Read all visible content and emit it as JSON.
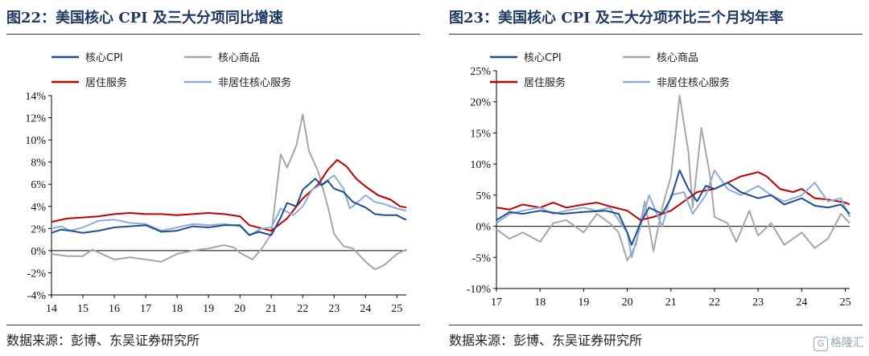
{
  "source_text": "数据来源：彭博、东吴证券研究所",
  "watermark": "格隆汇",
  "chart_data": [
    {
      "type": "line",
      "title": "图22：美国核心 CPI 及三大分项同比增速",
      "ylim": [
        -4,
        14
      ],
      "yticks": [
        "-4%",
        "-2%",
        "0%",
        "2%",
        "4%",
        "6%",
        "8%",
        "10%",
        "12%",
        "14%"
      ],
      "xlim": [
        14,
        25.3
      ],
      "xticks": [
        "14",
        "15",
        "16",
        "17",
        "18",
        "19",
        "20",
        "21",
        "22",
        "23",
        "24",
        "25"
      ],
      "legend": "top-left, 2 columns",
      "series": [
        {
          "name": "核心CPI",
          "color": "#1f4e8c",
          "values": [
            [
              14,
              1.6
            ],
            [
              14.3,
              1.9
            ],
            [
              14.6,
              1.8
            ],
            [
              15,
              1.6
            ],
            [
              15.5,
              1.8
            ],
            [
              16,
              2.1
            ],
            [
              16.5,
              2.2
            ],
            [
              17,
              2.3
            ],
            [
              17.5,
              1.7
            ],
            [
              18,
              1.8
            ],
            [
              18.5,
              2.2
            ],
            [
              19,
              2.1
            ],
            [
              19.5,
              2.3
            ],
            [
              20,
              2.3
            ],
            [
              20.3,
              1.4
            ],
            [
              20.6,
              1.7
            ],
            [
              21,
              1.4
            ],
            [
              21.3,
              3.0
            ],
            [
              21.5,
              4.3
            ],
            [
              21.8,
              4.0
            ],
            [
              22,
              5.5
            ],
            [
              22.2,
              6.0
            ],
            [
              22.4,
              6.5
            ],
            [
              22.6,
              5.9
            ],
            [
              22.8,
              6.3
            ],
            [
              23,
              5.6
            ],
            [
              23.3,
              5.3
            ],
            [
              23.6,
              4.4
            ],
            [
              24,
              3.9
            ],
            [
              24.3,
              3.3
            ],
            [
              24.6,
              3.2
            ],
            [
              25,
              3.2
            ],
            [
              25.2,
              2.9
            ],
            [
              25.3,
              2.8
            ]
          ]
        },
        {
          "name": "核心商品",
          "color": "#a6a6a6",
          "values": [
            [
              14,
              -0.3
            ],
            [
              14.5,
              -0.5
            ],
            [
              15,
              -0.5
            ],
            [
              15.3,
              0.1
            ],
            [
              15.6,
              -0.3
            ],
            [
              16,
              -0.8
            ],
            [
              16.5,
              -0.6
            ],
            [
              17,
              -0.8
            ],
            [
              17.5,
              -1.0
            ],
            [
              18,
              -0.3
            ],
            [
              18.5,
              0.0
            ],
            [
              19,
              0.2
            ],
            [
              19.5,
              0.5
            ],
            [
              19.8,
              0.3
            ],
            [
              20,
              -0.2
            ],
            [
              20.4,
              -0.8
            ],
            [
              20.7,
              0.2
            ],
            [
              21,
              1.5
            ],
            [
              21.3,
              8.7
            ],
            [
              21.5,
              7.5
            ],
            [
              21.8,
              9.5
            ],
            [
              22,
              12.3
            ],
            [
              22.2,
              9.0
            ],
            [
              22.5,
              7.1
            ],
            [
              22.8,
              4.0
            ],
            [
              23,
              1.5
            ],
            [
              23.3,
              0.4
            ],
            [
              23.6,
              0.2
            ],
            [
              24,
              -1.0
            ],
            [
              24.3,
              -1.7
            ],
            [
              24.6,
              -1.3
            ],
            [
              25,
              -0.3
            ],
            [
              25.3,
              0.1
            ]
          ]
        },
        {
          "name": "居住服务",
          "color": "#c00000",
          "values": [
            [
              14,
              2.6
            ],
            [
              14.5,
              2.9
            ],
            [
              15,
              3.0
            ],
            [
              15.5,
              3.1
            ],
            [
              16,
              3.3
            ],
            [
              16.5,
              3.4
            ],
            [
              17,
              3.3
            ],
            [
              17.5,
              3.3
            ],
            [
              18,
              3.2
            ],
            [
              18.5,
              3.3
            ],
            [
              19,
              3.4
            ],
            [
              19.5,
              3.3
            ],
            [
              20,
              3.1
            ],
            [
              20.3,
              2.3
            ],
            [
              20.7,
              2.0
            ],
            [
              21,
              1.8
            ],
            [
              21.5,
              2.9
            ],
            [
              22,
              4.7
            ],
            [
              22.5,
              6.0
            ],
            [
              22.8,
              7.3
            ],
            [
              23.1,
              8.2
            ],
            [
              23.4,
              7.6
            ],
            [
              23.7,
              6.5
            ],
            [
              24,
              5.8
            ],
            [
              24.4,
              5.0
            ],
            [
              24.8,
              4.6
            ],
            [
              25.1,
              4.0
            ],
            [
              25.3,
              3.9
            ]
          ]
        },
        {
          "name": "非居住核心服务",
          "color": "#8faadc",
          "values": [
            [
              14,
              2.0
            ],
            [
              14.3,
              2.2
            ],
            [
              14.6,
              1.8
            ],
            [
              15,
              2.1
            ],
            [
              15.5,
              2.7
            ],
            [
              16,
              2.8
            ],
            [
              16.5,
              2.5
            ],
            [
              17,
              2.4
            ],
            [
              17.5,
              1.8
            ],
            [
              18,
              2.1
            ],
            [
              18.5,
              2.4
            ],
            [
              19,
              2.3
            ],
            [
              19.5,
              2.4
            ],
            [
              20,
              2.2
            ],
            [
              20.3,
              1.4
            ],
            [
              20.7,
              2.0
            ],
            [
              21,
              2.1
            ],
            [
              21.3,
              3.8
            ],
            [
              21.7,
              3.2
            ],
            [
              22,
              4.0
            ],
            [
              22.3,
              5.5
            ],
            [
              22.6,
              6.0
            ],
            [
              23,
              6.8
            ],
            [
              23.3,
              5.6
            ],
            [
              23.5,
              3.8
            ],
            [
              23.8,
              4.5
            ],
            [
              24,
              5.0
            ],
            [
              24.3,
              4.4
            ],
            [
              24.6,
              4.2
            ],
            [
              25,
              3.8
            ],
            [
              25.3,
              3.6
            ]
          ]
        }
      ]
    },
    {
      "type": "line",
      "title": "图23：美国核心 CPI 及三大分项环比三个月均年率",
      "ylim": [
        -10,
        25
      ],
      "yticks": [
        "-10%",
        "-5%",
        "0%",
        "5%",
        "10%",
        "15%",
        "20%",
        "25%"
      ],
      "xlim": [
        17,
        25.1
      ],
      "xticks": [
        "17",
        "18",
        "19",
        "20",
        "21",
        "22",
        "23",
        "24",
        "25"
      ],
      "legend": "top-left, 2 columns",
      "series": [
        {
          "name": "核心CPI",
          "color": "#1f4e8c",
          "values": [
            [
              17,
              1.0
            ],
            [
              17.3,
              2.3
            ],
            [
              17.6,
              2.0
            ],
            [
              18,
              2.5
            ],
            [
              18.5,
              2.0
            ],
            [
              19,
              2.3
            ],
            [
              19.5,
              2.5
            ],
            [
              19.8,
              2.0
            ],
            [
              20,
              -1.0
            ],
            [
              20.1,
              -3.0
            ],
            [
              20.3,
              0.5
            ],
            [
              20.5,
              3.0
            ],
            [
              20.8,
              2.0
            ],
            [
              21,
              4.5
            ],
            [
              21.2,
              9.0
            ],
            [
              21.4,
              6.0
            ],
            [
              21.6,
              4.0
            ],
            [
              21.8,
              6.5
            ],
            [
              22,
              6.0
            ],
            [
              22.3,
              7.0
            ],
            [
              22.6,
              5.5
            ],
            [
              23,
              4.5
            ],
            [
              23.3,
              5.0
            ],
            [
              23.6,
              3.5
            ],
            [
              24,
              4.5
            ],
            [
              24.3,
              3.3
            ],
            [
              24.6,
              3.0
            ],
            [
              24.9,
              3.5
            ],
            [
              25.1,
              2.0
            ]
          ]
        },
        {
          "name": "核心商品",
          "color": "#a6a6a6",
          "values": [
            [
              17,
              -0.5
            ],
            [
              17.3,
              -2.0
            ],
            [
              17.6,
              -1.0
            ],
            [
              18,
              -2.5
            ],
            [
              18.3,
              0.5
            ],
            [
              18.6,
              1.0
            ],
            [
              19,
              -1.0
            ],
            [
              19.3,
              2.0
            ],
            [
              19.6,
              0.5
            ],
            [
              19.8,
              -1.0
            ],
            [
              20,
              -5.5
            ],
            [
              20.2,
              -3.0
            ],
            [
              20.4,
              4.0
            ],
            [
              20.6,
              -4.0
            ],
            [
              20.8,
              3.0
            ],
            [
              21,
              8.0
            ],
            [
              21.2,
              21.0
            ],
            [
              21.4,
              12.0
            ],
            [
              21.5,
              3.0
            ],
            [
              21.7,
              15.8
            ],
            [
              21.9,
              8.0
            ],
            [
              22,
              1.5
            ],
            [
              22.3,
              0.5
            ],
            [
              22.5,
              -2.5
            ],
            [
              22.8,
              2.5
            ],
            [
              23,
              -1.5
            ],
            [
              23.3,
              0.5
            ],
            [
              23.6,
              -3.0
            ],
            [
              24,
              -1.0
            ],
            [
              24.3,
              -3.5
            ],
            [
              24.6,
              -2.0
            ],
            [
              24.9,
              2.0
            ],
            [
              25.1,
              0.5
            ]
          ]
        },
        {
          "name": "居住服务",
          "color": "#c00000",
          "values": [
            [
              17,
              3.0
            ],
            [
              17.3,
              2.7
            ],
            [
              17.6,
              3.5
            ],
            [
              18,
              3.0
            ],
            [
              18.3,
              3.8
            ],
            [
              18.6,
              3.0
            ],
            [
              19,
              3.5
            ],
            [
              19.3,
              3.8
            ],
            [
              19.6,
              3.2
            ],
            [
              20,
              2.5
            ],
            [
              20.3,
              1.0
            ],
            [
              20.6,
              1.5
            ],
            [
              21,
              2.5
            ],
            [
              21.3,
              4.0
            ],
            [
              21.6,
              5.5
            ],
            [
              22,
              6.0
            ],
            [
              22.3,
              7.0
            ],
            [
              22.6,
              8.0
            ],
            [
              23,
              8.7
            ],
            [
              23.2,
              8.0
            ],
            [
              23.5,
              6.0
            ],
            [
              23.8,
              5.5
            ],
            [
              24,
              6.0
            ],
            [
              24.3,
              4.5
            ],
            [
              24.6,
              4.3
            ],
            [
              25,
              3.8
            ],
            [
              25.1,
              3.5
            ]
          ]
        },
        {
          "name": "非居住核心服务",
          "color": "#8faadc",
          "values": [
            [
              17,
              0.5
            ],
            [
              17.3,
              2.0
            ],
            [
              17.6,
              2.5
            ],
            [
              18,
              3.0
            ],
            [
              18.3,
              2.0
            ],
            [
              18.6,
              2.5
            ],
            [
              19,
              3.0
            ],
            [
              19.3,
              2.5
            ],
            [
              19.6,
              3.0
            ],
            [
              20,
              -1.0
            ],
            [
              20.1,
              -5.0
            ],
            [
              20.3,
              0.0
            ],
            [
              20.5,
              5.0
            ],
            [
              20.8,
              0.0
            ],
            [
              21,
              5.0
            ],
            [
              21.3,
              5.5
            ],
            [
              21.5,
              2.0
            ],
            [
              21.8,
              5.0
            ],
            [
              22,
              9.0
            ],
            [
              22.3,
              6.0
            ],
            [
              22.6,
              5.0
            ],
            [
              23,
              6.5
            ],
            [
              23.3,
              5.0
            ],
            [
              23.6,
              4.0
            ],
            [
              24,
              5.0
            ],
            [
              24.3,
              7.0
            ],
            [
              24.6,
              4.0
            ],
            [
              24.9,
              4.5
            ],
            [
              25.1,
              1.5
            ]
          ]
        }
      ]
    }
  ]
}
